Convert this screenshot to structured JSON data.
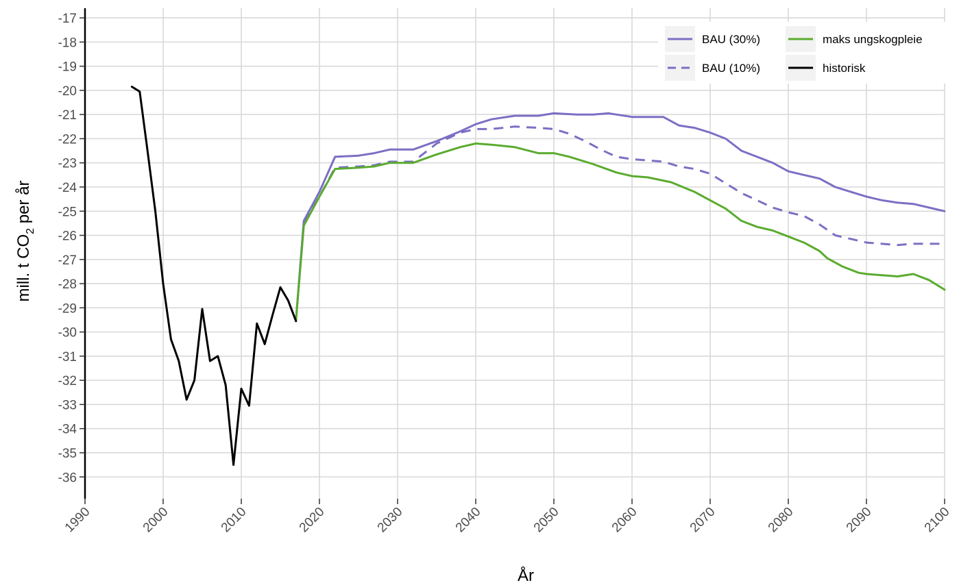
{
  "chart_data": {
    "type": "line",
    "title": "",
    "xlabel": "År",
    "ylabel": {
      "prefix": "mill. t CO",
      "subscript": "2",
      "suffix": " per år"
    },
    "xlim": [
      1990,
      2100
    ],
    "ylim": [
      -36.9,
      -16.6
    ],
    "x_ticks": [
      1990,
      2000,
      2010,
      2020,
      2030,
      2040,
      2050,
      2060,
      2070,
      2080,
      2090,
      2100
    ],
    "y_ticks": [
      -17,
      -18,
      -19,
      -20,
      -21,
      -22,
      -23,
      -24,
      -25,
      -26,
      -27,
      -28,
      -29,
      -30,
      -31,
      -32,
      -33,
      -34,
      -35,
      -36
    ],
    "grid": true,
    "legend_position": "top-right",
    "series": [
      {
        "name": "BAU (30%)",
        "color": "#7b6fc4",
        "dash": "solid",
        "points": [
          [
            2017,
            -29.5
          ],
          [
            2018,
            -25.4
          ],
          [
            2020,
            -24.2
          ],
          [
            2022,
            -22.75
          ],
          [
            2025,
            -22.7
          ],
          [
            2027,
            -22.6
          ],
          [
            2029,
            -22.45
          ],
          [
            2032,
            -22.45
          ],
          [
            2035,
            -22.1
          ],
          [
            2038,
            -21.7
          ],
          [
            2040,
            -21.4
          ],
          [
            2042,
            -21.2
          ],
          [
            2045,
            -21.05
          ],
          [
            2048,
            -21.05
          ],
          [
            2050,
            -20.95
          ],
          [
            2053,
            -21.0
          ],
          [
            2055,
            -21.0
          ],
          [
            2057,
            -20.95
          ],
          [
            2060,
            -21.1
          ],
          [
            2062,
            -21.1
          ],
          [
            2064,
            -21.1
          ],
          [
            2066,
            -21.45
          ],
          [
            2068,
            -21.55
          ],
          [
            2070,
            -21.75
          ],
          [
            2072,
            -22.0
          ],
          [
            2074,
            -22.5
          ],
          [
            2076,
            -22.75
          ],
          [
            2078,
            -23.0
          ],
          [
            2080,
            -23.35
          ],
          [
            2082,
            -23.5
          ],
          [
            2084,
            -23.65
          ],
          [
            2086,
            -24.0
          ],
          [
            2088,
            -24.2
          ],
          [
            2090,
            -24.4
          ],
          [
            2092,
            -24.55
          ],
          [
            2094,
            -24.65
          ],
          [
            2096,
            -24.7
          ],
          [
            2098,
            -24.85
          ],
          [
            2100,
            -25.0
          ]
        ]
      },
      {
        "name": "BAU (10%)",
        "color": "#7b6fc4",
        "dash": "dashed",
        "points": [
          [
            2017,
            -29.5
          ],
          [
            2018,
            -25.5
          ],
          [
            2020,
            -24.4
          ],
          [
            2022,
            -23.2
          ],
          [
            2025,
            -23.15
          ],
          [
            2027,
            -23.1
          ],
          [
            2029,
            -22.95
          ],
          [
            2032,
            -22.95
          ],
          [
            2035,
            -22.2
          ],
          [
            2038,
            -21.75
          ],
          [
            2040,
            -21.6
          ],
          [
            2042,
            -21.6
          ],
          [
            2045,
            -21.5
          ],
          [
            2048,
            -21.55
          ],
          [
            2050,
            -21.6
          ],
          [
            2052,
            -21.8
          ],
          [
            2054,
            -22.1
          ],
          [
            2056,
            -22.45
          ],
          [
            2058,
            -22.75
          ],
          [
            2060,
            -22.85
          ],
          [
            2062,
            -22.9
          ],
          [
            2064,
            -22.95
          ],
          [
            2066,
            -23.15
          ],
          [
            2068,
            -23.25
          ],
          [
            2070,
            -23.45
          ],
          [
            2072,
            -23.85
          ],
          [
            2074,
            -24.25
          ],
          [
            2076,
            -24.55
          ],
          [
            2078,
            -24.85
          ],
          [
            2080,
            -25.05
          ],
          [
            2082,
            -25.2
          ],
          [
            2084,
            -25.55
          ],
          [
            2086,
            -26.0
          ],
          [
            2088,
            -26.15
          ],
          [
            2090,
            -26.3
          ],
          [
            2092,
            -26.35
          ],
          [
            2094,
            -26.4
          ],
          [
            2096,
            -26.35
          ],
          [
            2098,
            -26.35
          ],
          [
            2100,
            -26.35
          ]
        ]
      },
      {
        "name": "maks ungskogpleie",
        "color": "#5aab2e",
        "dash": "solid",
        "points": [
          [
            2017,
            -29.5
          ],
          [
            2018,
            -25.6
          ],
          [
            2020,
            -24.4
          ],
          [
            2022,
            -23.25
          ],
          [
            2025,
            -23.2
          ],
          [
            2027,
            -23.15
          ],
          [
            2029,
            -23.0
          ],
          [
            2032,
            -23.0
          ],
          [
            2035,
            -22.65
          ],
          [
            2038,
            -22.35
          ],
          [
            2040,
            -22.2
          ],
          [
            2042,
            -22.25
          ],
          [
            2045,
            -22.35
          ],
          [
            2048,
            -22.6
          ],
          [
            2050,
            -22.6
          ],
          [
            2052,
            -22.75
          ],
          [
            2055,
            -23.05
          ],
          [
            2058,
            -23.4
          ],
          [
            2060,
            -23.55
          ],
          [
            2062,
            -23.6
          ],
          [
            2065,
            -23.8
          ],
          [
            2068,
            -24.2
          ],
          [
            2070,
            -24.55
          ],
          [
            2072,
            -24.9
          ],
          [
            2074,
            -25.4
          ],
          [
            2076,
            -25.65
          ],
          [
            2078,
            -25.8
          ],
          [
            2080,
            -26.05
          ],
          [
            2082,
            -26.3
          ],
          [
            2084,
            -26.65
          ],
          [
            2085,
            -26.95
          ],
          [
            2087,
            -27.3
          ],
          [
            2089,
            -27.55
          ],
          [
            2090,
            -27.6
          ],
          [
            2092,
            -27.65
          ],
          [
            2094,
            -27.7
          ],
          [
            2096,
            -27.6
          ],
          [
            2098,
            -27.85
          ],
          [
            2100,
            -28.25
          ]
        ]
      },
      {
        "name": "historisk",
        "color": "#000000",
        "dash": "solid",
        "points": [
          [
            1996,
            -19.85
          ],
          [
            1997,
            -20.05
          ],
          [
            1998,
            -22.5
          ],
          [
            1999,
            -25.0
          ],
          [
            2000,
            -28.0
          ],
          [
            2001,
            -30.3
          ],
          [
            2002,
            -31.2
          ],
          [
            2003,
            -32.8
          ],
          [
            2004,
            -32.0
          ],
          [
            2005,
            -29.05
          ],
          [
            2006,
            -31.2
          ],
          [
            2007,
            -31.0
          ],
          [
            2008,
            -32.2
          ],
          [
            2009,
            -35.5
          ],
          [
            2010,
            -32.35
          ],
          [
            2011,
            -33.05
          ],
          [
            2012,
            -29.65
          ],
          [
            2013,
            -30.5
          ],
          [
            2014,
            -29.3
          ],
          [
            2015,
            -28.15
          ],
          [
            2016,
            -28.7
          ],
          [
            2017,
            -29.55
          ]
        ]
      }
    ]
  }
}
